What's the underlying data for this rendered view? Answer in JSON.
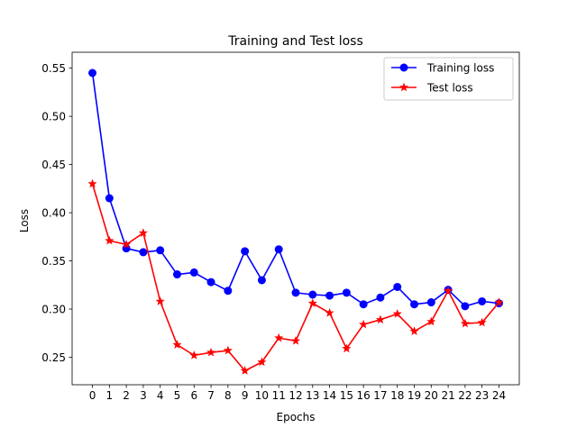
{
  "chart_data": {
    "type": "line",
    "title": "Training and Test loss",
    "xlabel": "Epochs",
    "ylabel": "Loss",
    "x": [
      0,
      1,
      2,
      3,
      4,
      5,
      6,
      7,
      8,
      9,
      10,
      11,
      12,
      13,
      14,
      15,
      16,
      17,
      18,
      19,
      20,
      21,
      22,
      23,
      24
    ],
    "x_tick_labels": [
      "0",
      "1",
      "2",
      "3",
      "4",
      "5",
      "6",
      "7",
      "8",
      "9",
      "10",
      "11",
      "12",
      "13",
      "14",
      "15",
      "16",
      "17",
      "18",
      "19",
      "20",
      "21",
      "22",
      "23",
      "24"
    ],
    "y_tick_values": [
      0.25,
      0.3,
      0.35,
      0.4,
      0.45,
      0.5,
      0.55
    ],
    "y_tick_labels": [
      "0.25",
      "0.30",
      "0.35",
      "0.40",
      "0.45",
      "0.50",
      "0.55"
    ],
    "xlim": [
      -1.2,
      25.2
    ],
    "ylim": [
      0.2215,
      0.5665
    ],
    "grid": false,
    "legend_position": "top-right",
    "series": [
      {
        "name": "Training loss",
        "color": "#0000ff",
        "marker": "circle",
        "values": [
          0.545,
          0.415,
          0.363,
          0.359,
          0.361,
          0.336,
          0.338,
          0.328,
          0.319,
          0.36,
          0.33,
          0.362,
          0.317,
          0.315,
          0.314,
          0.317,
          0.305,
          0.312,
          0.323,
          0.305,
          0.307,
          0.32,
          0.303,
          0.308,
          0.306
        ]
      },
      {
        "name": "Test loss",
        "color": "#ff0000",
        "marker": "star",
        "values": [
          0.43,
          0.371,
          0.367,
          0.379,
          0.308,
          0.263,
          0.252,
          0.255,
          0.257,
          0.236,
          0.245,
          0.27,
          0.267,
          0.306,
          0.296,
          0.259,
          0.284,
          0.289,
          0.295,
          0.277,
          0.287,
          0.319,
          0.285,
          0.286,
          0.307
        ]
      }
    ]
  }
}
